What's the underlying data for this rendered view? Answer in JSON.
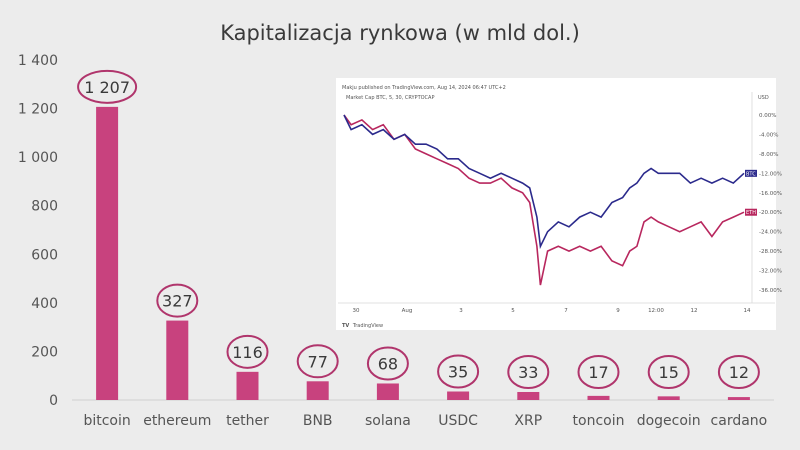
{
  "chart_data": {
    "type": "bar",
    "title": "Kapitalizacja rynkowa (w mld dol.)",
    "categories": [
      "bitcoin",
      "ethereum",
      "tether",
      "BNB",
      "solana",
      "USDC",
      "XRP",
      "toncoin",
      "dogecoin",
      "cardano"
    ],
    "values": [
      1207,
      327,
      116,
      77,
      68,
      35,
      33,
      17,
      15,
      12
    ],
    "value_labels": [
      "1 207",
      "327",
      "116",
      "77",
      "68",
      "35",
      "33",
      "17",
      "15",
      "12"
    ],
    "ylim": [
      0,
      1400
    ],
    "yticks": [
      0,
      200,
      400,
      600,
      800,
      1000,
      1200,
      1400
    ],
    "ytick_labels": [
      "0",
      "200",
      "400",
      "600",
      "800",
      "1 000",
      "1 200",
      "1 400"
    ],
    "bar_color": "#c8427e",
    "circle_color": "#b0356c",
    "grid": false
  },
  "inset": {
    "header": "Makju published on TradingView.com, Aug 14, 2024 06:47 UTC+2",
    "symbol_line": "Market Cap BTC, 5, 30, CRYPTOCAP",
    "currency": "USD",
    "brand": "TradingView",
    "btc_tag": "BTC",
    "eth_tag": "ETH",
    "btc_color": "#2b2a8c",
    "eth_color": "#b8275e",
    "x_labels": [
      "30",
      "Aug",
      "3",
      "5",
      "7",
      "9",
      "12:00",
      "12",
      "14"
    ],
    "y_labels": [
      "0.00%",
      "-4.00%",
      "-8.00%",
      "-12.00%",
      "-16.00%",
      "-20.00%",
      "-24.00%",
      "-28.00%",
      "-32.00%",
      "-36.00%"
    ],
    "y_values": [
      0,
      -4,
      -8,
      -12,
      -16,
      -20,
      -24,
      -28,
      -32,
      -36
    ],
    "btc_end": -12,
    "eth_end": -20,
    "series": {
      "btc": [
        [
          0,
          0
        ],
        [
          2,
          -3
        ],
        [
          5,
          -2
        ],
        [
          8,
          -4
        ],
        [
          11,
          -3
        ],
        [
          14,
          -5
        ],
        [
          17,
          -4
        ],
        [
          20,
          -6
        ],
        [
          23,
          -6
        ],
        [
          26,
          -7
        ],
        [
          29,
          -9
        ],
        [
          32,
          -9
        ],
        [
          35,
          -11
        ],
        [
          38,
          -12
        ],
        [
          41,
          -13
        ],
        [
          44,
          -12
        ],
        [
          47,
          -13
        ],
        [
          50,
          -14
        ],
        [
          52,
          -15
        ],
        [
          54,
          -21
        ],
        [
          55,
          -27
        ],
        [
          57,
          -24
        ],
        [
          60,
          -22
        ],
        [
          63,
          -23
        ],
        [
          66,
          -21
        ],
        [
          69,
          -20
        ],
        [
          72,
          -21
        ],
        [
          75,
          -18
        ],
        [
          78,
          -17
        ],
        [
          80,
          -15
        ],
        [
          82,
          -14
        ],
        [
          84,
          -12
        ],
        [
          86,
          -11
        ],
        [
          88,
          -12
        ],
        [
          91,
          -12
        ],
        [
          94,
          -12
        ],
        [
          97,
          -14
        ],
        [
          100,
          -13
        ],
        [
          103,
          -14
        ],
        [
          106,
          -13
        ],
        [
          109,
          -14
        ],
        [
          112,
          -12
        ]
      ],
      "eth": [
        [
          0,
          0
        ],
        [
          2,
          -2
        ],
        [
          5,
          -1
        ],
        [
          8,
          -3
        ],
        [
          11,
          -2
        ],
        [
          14,
          -5
        ],
        [
          17,
          -4
        ],
        [
          20,
          -7
        ],
        [
          23,
          -8
        ],
        [
          26,
          -9
        ],
        [
          29,
          -10
        ],
        [
          32,
          -11
        ],
        [
          35,
          -13
        ],
        [
          38,
          -14
        ],
        [
          41,
          -14
        ],
        [
          44,
          -13
        ],
        [
          47,
          -15
        ],
        [
          50,
          -16
        ],
        [
          52,
          -18
        ],
        [
          54,
          -27
        ],
        [
          55,
          -35
        ],
        [
          57,
          -28
        ],
        [
          60,
          -27
        ],
        [
          63,
          -28
        ],
        [
          66,
          -27
        ],
        [
          69,
          -28
        ],
        [
          72,
          -27
        ],
        [
          75,
          -30
        ],
        [
          78,
          -31
        ],
        [
          80,
          -28
        ],
        [
          82,
          -27
        ],
        [
          84,
          -22
        ],
        [
          86,
          -21
        ],
        [
          88,
          -22
        ],
        [
          91,
          -23
        ],
        [
          94,
          -24
        ],
        [
          97,
          -23
        ],
        [
          100,
          -22
        ],
        [
          103,
          -25
        ],
        [
          106,
          -22
        ],
        [
          109,
          -21
        ],
        [
          112,
          -20
        ]
      ]
    }
  }
}
